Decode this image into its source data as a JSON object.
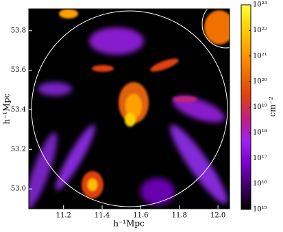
{
  "chart_data": {
    "type": "image",
    "xlabel": "h⁻¹Mpc",
    "ylabel": "h⁻¹Mpc",
    "xlim": [
      11.02,
      12.06
    ],
    "ylim": [
      52.9,
      53.91
    ],
    "xticks": [
      11.2,
      11.4,
      11.6,
      11.8,
      {
        "value": 12,
        "label": "12.0"
      }
    ],
    "yticks": [
      {
        "value": 53,
        "label": "53.0"
      },
      53.2,
      53.4,
      53.6,
      53.8
    ],
    "colorbar": {
      "label": "cm⁻²",
      "log": true,
      "clim": [
        1000000000000000.0,
        1e+23
      ],
      "colors": [
        "#000000",
        "#3d0066",
        "#7a00cc",
        "#a020f0",
        "#c02080",
        "#e04010",
        "#f07000",
        "#ffa000",
        "#ffd000",
        "#ffff40"
      ],
      "ticks": [
        {
          "value": 1000000000000000.0,
          "label": "10¹⁵"
        },
        {
          "value": 1e+16,
          "label": "10¹⁶"
        },
        {
          "value": 1e+17,
          "label": "10¹⁷"
        },
        {
          "value": 1e+18,
          "label": "10¹⁸"
        },
        {
          "value": 1e+19,
          "label": "10¹⁹"
        },
        {
          "value": 1e+20,
          "label": "10²⁰"
        },
        {
          "value": 1e+21,
          "label": "10²¹"
        },
        {
          "value": 1e+22,
          "label": "10²²"
        },
        {
          "value": 1e+23,
          "label": "10²³"
        }
      ]
    }
  }
}
